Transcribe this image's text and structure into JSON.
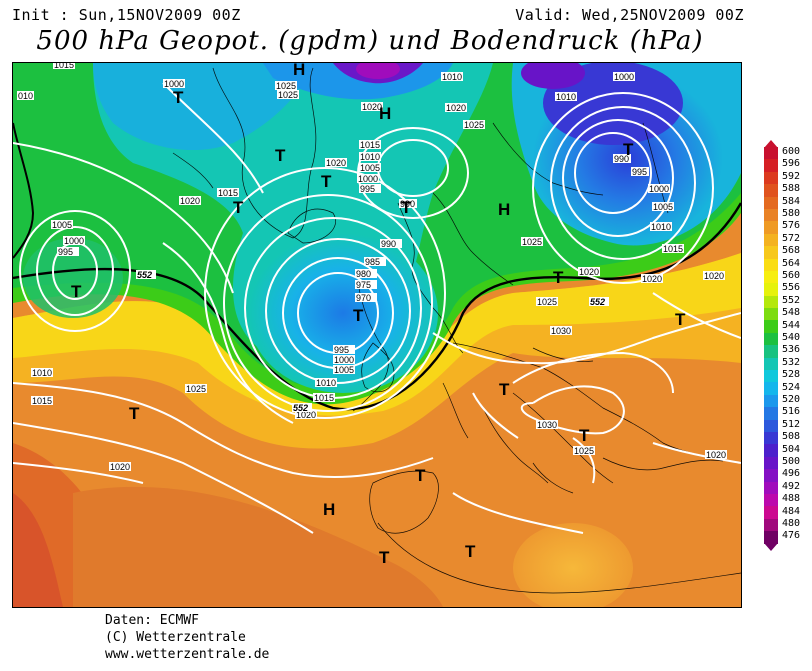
{
  "header": {
    "init": "Init : Sun,15NOV2009 00Z",
    "valid": "Valid: Wed,25NOV2009 00Z",
    "title": "500 hPa Geopot. (gpdm) und Bodendruck (hPa)"
  },
  "footer": {
    "line1": "Daten: ECMWF",
    "line2": "(C) Wetterzentrale",
    "line3": "www.wetterzentrale.de"
  },
  "legend": {
    "levels": [
      "600",
      "596",
      "592",
      "588",
      "584",
      "580",
      "576",
      "572",
      "568",
      "564",
      "560",
      "556",
      "552",
      "548",
      "544",
      "540",
      "536",
      "532",
      "528",
      "524",
      "520",
      "516",
      "512",
      "508",
      "504",
      "500",
      "496",
      "492",
      "488",
      "484",
      "480",
      "476"
    ],
    "colors": [
      "#c8102e",
      "#d51f24",
      "#dc3a1e",
      "#e0531e",
      "#e46a20",
      "#e98226",
      "#ef9a24",
      "#f4b220",
      "#f7c81c",
      "#fadd14",
      "#f7ee10",
      "#e6f20c",
      "#b4e80c",
      "#7ddc10",
      "#3ccc18",
      "#1cc040",
      "#18c280",
      "#14c6b4",
      "#10c8dc",
      "#14b6ec",
      "#1c98ec",
      "#2478e4",
      "#2c58dc",
      "#3838d4",
      "#4c20cc",
      "#6814c8",
      "#8410c4",
      "#a00cbc",
      "#bc08ac",
      "#cc0890",
      "#a0087c",
      "#700064"
    ]
  },
  "map": {
    "pressure_labels": [
      "1015",
      "010",
      "1000",
      "1025",
      "1020",
      "1010",
      "1005",
      "995",
      "1000",
      "1015",
      "1020",
      "1025",
      "1020",
      "1015",
      "1010",
      "1005",
      "1000",
      "995",
      "990",
      "985",
      "980",
      "975",
      "970",
      "990",
      "995",
      "1000",
      "1005",
      "1010",
      "1015",
      "1020",
      "1025",
      "1010",
      "1015",
      "1020",
      "1025",
      "1020",
      "1025",
      "1030",
      "1030",
      "1025",
      "1020",
      "1025",
      "1000",
      "990",
      "995",
      "1000",
      "1005",
      "1010",
      "1015",
      "1020",
      "1020",
      "1020",
      "1010"
    ],
    "height_labels": [
      "552",
      "552",
      "552",
      "552"
    ],
    "highs": [
      "H",
      "H",
      "H",
      "H"
    ],
    "lows": [
      "T",
      "T",
      "T",
      "T",
      "T",
      "T",
      "T",
      "T",
      "T",
      "T",
      "T",
      "T",
      "T",
      "T",
      "T",
      "T"
    ]
  }
}
